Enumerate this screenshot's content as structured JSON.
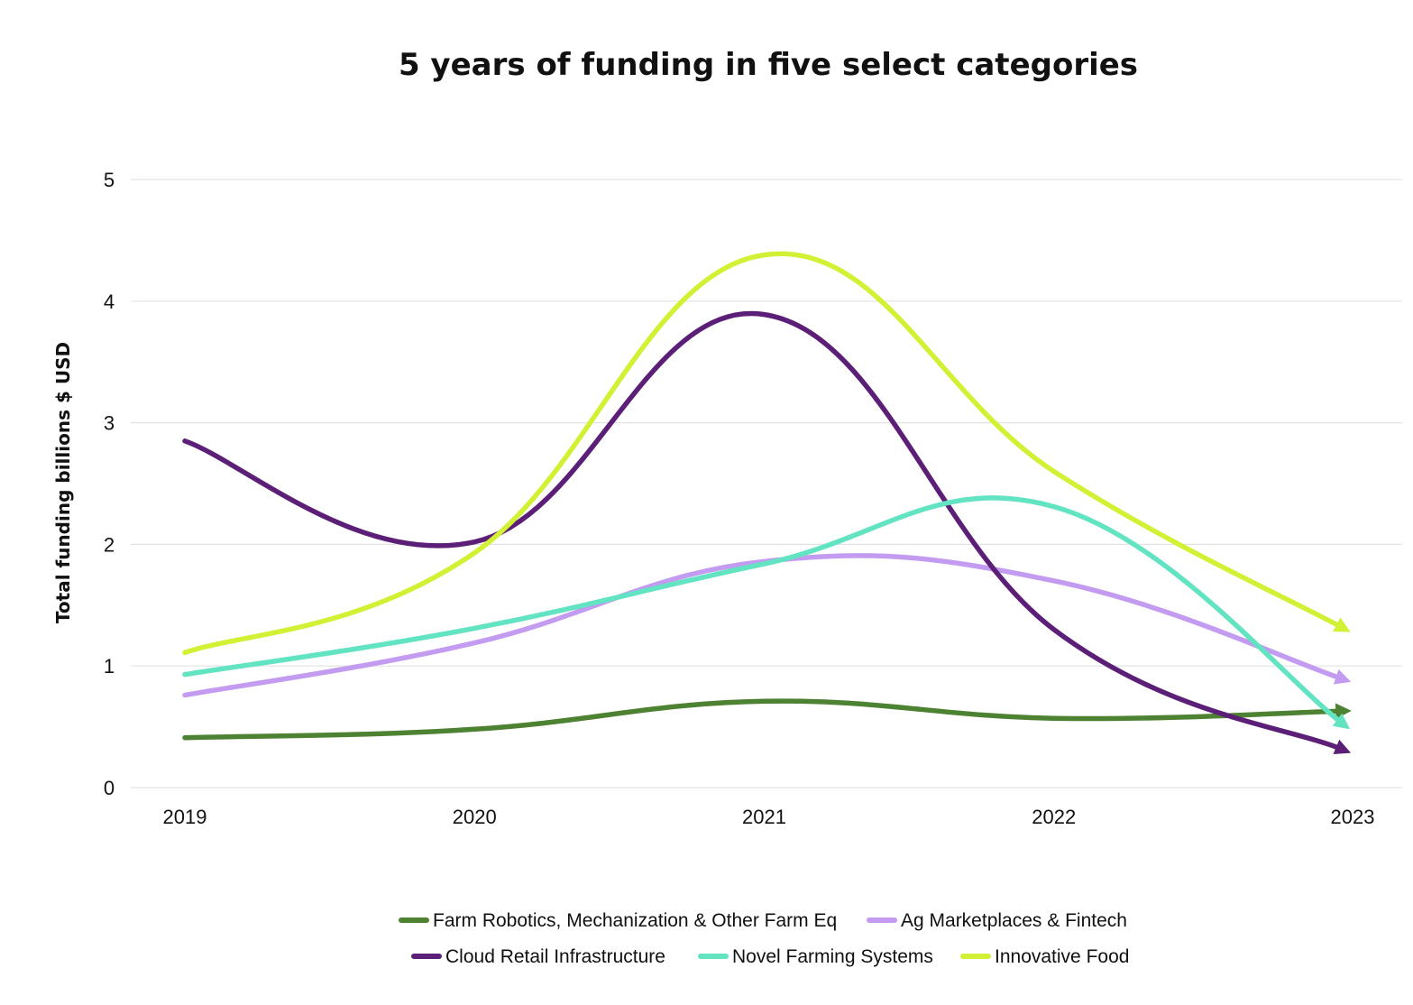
{
  "chart_data": {
    "type": "line",
    "title": "5 years of funding in five select categories",
    "xlabel": "",
    "ylabel": "Total funding billions $ USD",
    "categories": [
      "2019",
      "2020",
      "2021",
      "2022",
      "2023"
    ],
    "ylim": [
      0,
      5
    ],
    "yticks": [
      "0",
      "1",
      "2",
      "3",
      "4",
      "5"
    ],
    "grid": true,
    "smooth": true,
    "legend_position": "bottom",
    "series": [
      {
        "name": "Farm Robotics, Mechanization & Other Farm Eq",
        "color": "#4d8232",
        "values": [
          0.41,
          0.48,
          0.71,
          0.57,
          0.63
        ]
      },
      {
        "name": "Ag Marketplaces & Fintech",
        "color": "#c39cf2",
        "values": [
          0.76,
          1.19,
          1.86,
          1.7,
          0.89
        ]
      },
      {
        "name": "Cloud Retail Infrastructure",
        "color": "#5c1f77",
        "values": [
          2.85,
          2.02,
          3.89,
          1.3,
          0.31
        ]
      },
      {
        "name": "Novel Farming Systems",
        "color": "#62e3c1",
        "values": [
          0.93,
          1.31,
          1.84,
          2.31,
          0.52
        ]
      },
      {
        "name": "Innovative Food",
        "color": "#d2f135",
        "values": [
          1.11,
          1.93,
          4.38,
          2.6,
          1.31
        ]
      }
    ]
  }
}
